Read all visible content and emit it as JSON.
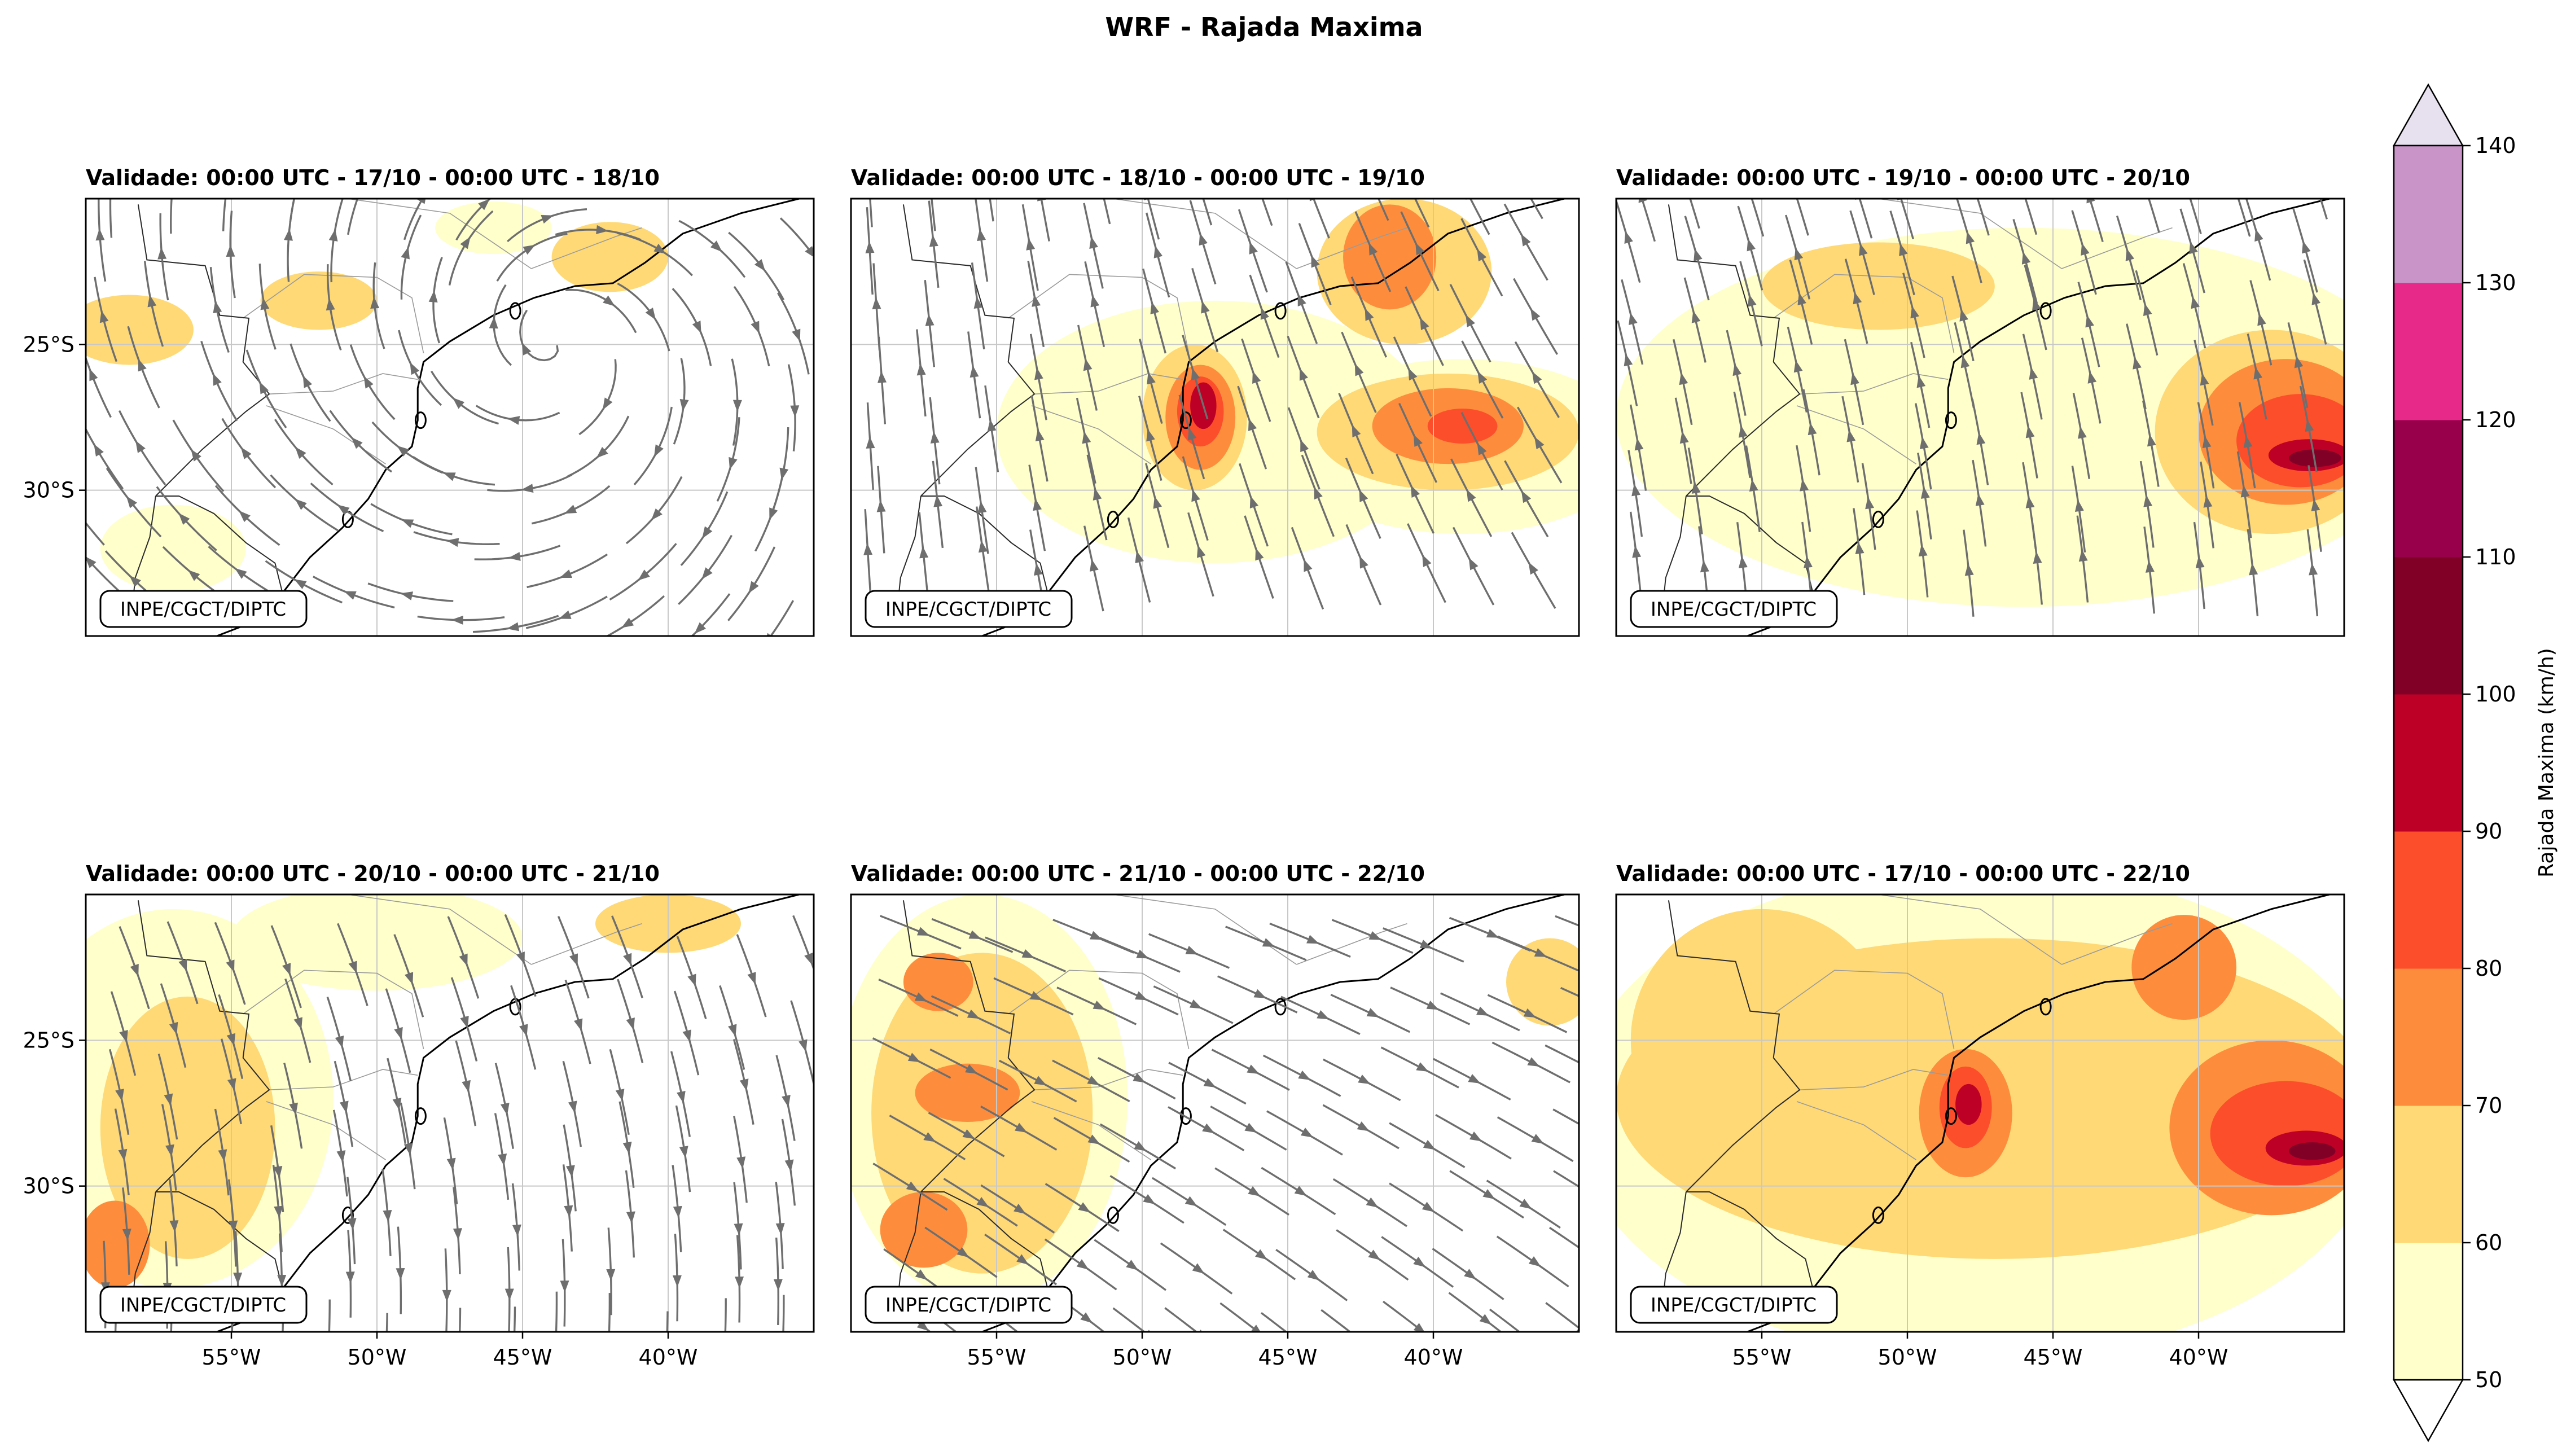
{
  "figure": {
    "title": "WRF - Rajada Maxima"
  },
  "chart_data": {
    "type": "heatmap",
    "title": "WRF - Rajada Maxima",
    "variable": "Rajada Maxima (km/h)",
    "overlay": "streamlines",
    "colorbar": {
      "label": "Rajada Maxima (km/h)",
      "levels": [
        50,
        60,
        70,
        80,
        90,
        100,
        110,
        120,
        130,
        140
      ],
      "colors": [
        "#ffffcc",
        "#fed976",
        "#fd8d3c",
        "#fc4e2a",
        "#bd0026",
        "#800026",
        "#99004c",
        "#e7298a",
        "#c994c7"
      ],
      "extend_under_color": "#ffffff",
      "extend_over_color": "#e7e1ef",
      "placement": "right"
    },
    "xlim": [
      -60,
      -35
    ],
    "ylim": [
      -35,
      -20
    ],
    "x_ticks": [
      "55°W",
      "50°W",
      "45°W",
      "40°W"
    ],
    "y_ticks": [
      "25°S",
      "30°S"
    ],
    "grid": true,
    "watermark": "INPE/CGCT/DIPTC",
    "panels": [
      {
        "title": "Validade: 00:00 UTC - 17/10 - 00:00 UTC - 18/10",
        "max_gust_region": [
          -58,
          -27
        ],
        "blobs": [
          {
            "lon": -58.5,
            "lat": -24.5,
            "rx": 2.2,
            "ry": 1.2,
            "level": 60
          },
          {
            "lon": -52.0,
            "lat": -23.5,
            "rx": 2.0,
            "ry": 1.0,
            "level": 60
          },
          {
            "lon": -42.0,
            "lat": -22.0,
            "rx": 2.0,
            "ry": 1.2,
            "level": 60
          },
          {
            "lon": -57.0,
            "lat": -32.0,
            "rx": 2.5,
            "ry": 1.5,
            "level": 50
          },
          {
            "lon": -46.0,
            "lat": -21.0,
            "rx": 2.0,
            "ry": 0.9,
            "level": 50
          }
        ]
      },
      {
        "title": "Validade: 00:00 UTC - 18/10 - 00:00 UTC - 19/10",
        "blobs": [
          {
            "lon": -47.5,
            "lat": -28.0,
            "rx": 7.5,
            "ry": 4.5,
            "level": 50
          },
          {
            "lon": -39.0,
            "lat": -28.5,
            "rx": 6.0,
            "ry": 3.0,
            "level": 50
          },
          {
            "lon": -41.0,
            "lat": -22.5,
            "rx": 3.0,
            "ry": 2.5,
            "level": 60
          },
          {
            "lon": -39.5,
            "lat": -28.0,
            "rx": 4.5,
            "ry": 2.0,
            "level": 60
          },
          {
            "lon": -41.5,
            "lat": -22.0,
            "rx": 1.6,
            "ry": 1.8,
            "level": 70
          },
          {
            "lon": -39.5,
            "lat": -27.8,
            "rx": 2.6,
            "ry": 1.3,
            "level": 70
          },
          {
            "lon": -39.0,
            "lat": -27.8,
            "rx": 1.2,
            "ry": 0.6,
            "level": 80
          },
          {
            "lon": -48.2,
            "lat": -27.5,
            "rx": 1.8,
            "ry": 2.5,
            "level": 60
          },
          {
            "lon": -48.0,
            "lat": -27.5,
            "rx": 1.2,
            "ry": 1.8,
            "level": 70
          },
          {
            "lon": -48.0,
            "lat": -27.3,
            "rx": 0.8,
            "ry": 1.2,
            "level": 80
          },
          {
            "lon": -47.9,
            "lat": -27.1,
            "rx": 0.45,
            "ry": 0.8,
            "level": 90
          }
        ]
      },
      {
        "title": "Validade: 00:00 UTC - 19/10 - 00:00 UTC - 20/10",
        "blobs": [
          {
            "lon": -46.0,
            "lat": -27.5,
            "rx": 14.0,
            "ry": 6.5,
            "level": 50
          },
          {
            "lon": -37.5,
            "lat": -28.0,
            "rx": 4.0,
            "ry": 3.5,
            "level": 60
          },
          {
            "lon": -51.0,
            "lat": -23.0,
            "rx": 4.0,
            "ry": 1.5,
            "level": 60
          },
          {
            "lon": -37.0,
            "lat": -28.0,
            "rx": 3.0,
            "ry": 2.5,
            "level": 70
          },
          {
            "lon": -36.5,
            "lat": -28.3,
            "rx": 2.2,
            "ry": 1.6,
            "level": 80
          },
          {
            "lon": -36.2,
            "lat": -28.8,
            "rx": 1.4,
            "ry": 0.55,
            "level": 90
          },
          {
            "lon": -36.0,
            "lat": -28.9,
            "rx": 0.9,
            "ry": 0.3,
            "level": 100
          }
        ]
      },
      {
        "title": "Validade: 00:00 UTC - 20/10 - 00:00 UTC - 21/10",
        "blobs": [
          {
            "lon": -57.0,
            "lat": -27.0,
            "rx": 5.5,
            "ry": 6.5,
            "level": 50
          },
          {
            "lon": -50.0,
            "lat": -21.5,
            "rx": 5.0,
            "ry": 1.8,
            "level": 50
          },
          {
            "lon": -56.5,
            "lat": -28.0,
            "rx": 3.0,
            "ry": 4.5,
            "level": 60
          },
          {
            "lon": -59.0,
            "lat": -32.0,
            "rx": 1.2,
            "ry": 1.5,
            "level": 70
          },
          {
            "lon": -40.0,
            "lat": -21.0,
            "rx": 2.5,
            "ry": 1.0,
            "level": 60
          }
        ]
      },
      {
        "title": "Validade: 00:00 UTC - 21/10 - 00:00 UTC - 22/10",
        "blobs": [
          {
            "lon": -55.5,
            "lat": -27.0,
            "rx": 5.0,
            "ry": 7.0,
            "level": 50
          },
          {
            "lon": -55.5,
            "lat": -27.5,
            "rx": 3.8,
            "ry": 5.5,
            "level": 60
          },
          {
            "lon": -56.0,
            "lat": -26.8,
            "rx": 1.8,
            "ry": 1.0,
            "level": 70
          },
          {
            "lon": -57.5,
            "lat": -31.5,
            "rx": 1.5,
            "ry": 1.3,
            "level": 70
          },
          {
            "lon": -57.0,
            "lat": -23.0,
            "rx": 1.2,
            "ry": 1.0,
            "level": 70
          },
          {
            "lon": -36.0,
            "lat": -23.0,
            "rx": 1.5,
            "ry": 1.5,
            "level": 60
          }
        ]
      },
      {
        "title": "Validade: 00:00 UTC - 17/10 - 00:00 UTC - 22/10",
        "blobs": [
          {
            "lon": -47.5,
            "lat": -27.5,
            "rx": 14.0,
            "ry": 8.5,
            "level": 50
          },
          {
            "lon": -47.0,
            "lat": -27.0,
            "rx": 13.0,
            "ry": 5.5,
            "level": 60
          },
          {
            "lon": -55.0,
            "lat": -25.0,
            "rx": 4.5,
            "ry": 4.5,
            "level": 60
          },
          {
            "lon": -37.5,
            "lat": -28.0,
            "rx": 3.5,
            "ry": 3.0,
            "level": 70
          },
          {
            "lon": -40.5,
            "lat": -22.5,
            "rx": 1.8,
            "ry": 1.8,
            "level": 70
          },
          {
            "lon": -48.0,
            "lat": -27.5,
            "rx": 1.6,
            "ry": 2.2,
            "level": 70
          },
          {
            "lon": -37.0,
            "lat": -28.2,
            "rx": 2.6,
            "ry": 1.8,
            "level": 80
          },
          {
            "lon": -48.0,
            "lat": -27.3,
            "rx": 0.9,
            "ry": 1.4,
            "level": 80
          },
          {
            "lon": -36.3,
            "lat": -28.7,
            "rx": 1.4,
            "ry": 0.6,
            "level": 90
          },
          {
            "lon": -47.9,
            "lat": -27.2,
            "rx": 0.45,
            "ry": 0.7,
            "level": 90
          },
          {
            "lon": -36.1,
            "lat": -28.8,
            "rx": 0.8,
            "ry": 0.3,
            "level": 100
          }
        ]
      }
    ],
    "coastline": [
      [
        -35.5,
        -20.0
      ],
      [
        -37.5,
        -20.5
      ],
      [
        -39.5,
        -21.2
      ],
      [
        -40.8,
        -22.2
      ],
      [
        -41.9,
        -22.9
      ],
      [
        -43.2,
        -23.0
      ],
      [
        -44.6,
        -23.4
      ],
      [
        -46.0,
        -24.0
      ],
      [
        -47.5,
        -24.9
      ],
      [
        -48.4,
        -25.6
      ],
      [
        -48.6,
        -26.5
      ],
      [
        -48.6,
        -27.6
      ],
      [
        -48.8,
        -28.5
      ],
      [
        -49.7,
        -29.3
      ],
      [
        -50.3,
        -30.3
      ],
      [
        -51.2,
        -31.3
      ],
      [
        -52.3,
        -32.3
      ],
      [
        -53.3,
        -33.6
      ],
      [
        -54.2,
        -34.5
      ],
      [
        -55.5,
        -35.0
      ]
    ],
    "borders": [
      [
        [
          -53.2,
          -33.7
        ],
        [
          -53.5,
          -32.5
        ],
        [
          -54.5,
          -31.8
        ],
        [
          -55.6,
          -30.8
        ],
        [
          -56.8,
          -30.2
        ],
        [
          -57.6,
          -30.2
        ]
      ],
      [
        [
          -57.6,
          -30.2
        ],
        [
          -56.0,
          -28.6
        ],
        [
          -54.5,
          -27.3
        ],
        [
          -53.7,
          -26.7
        ],
        [
          -54.6,
          -25.6
        ]
      ],
      [
        [
          -54.6,
          -25.6
        ],
        [
          -54.4,
          -24.1
        ],
        [
          -55.4,
          -24.0
        ],
        [
          -55.9,
          -22.3
        ],
        [
          -57.9,
          -22.1
        ],
        [
          -58.2,
          -20.2
        ]
      ],
      [
        [
          -57.6,
          -30.2
        ],
        [
          -57.8,
          -31.6
        ],
        [
          -58.3,
          -33.0
        ],
        [
          -58.4,
          -34.0
        ]
      ]
    ],
    "states": [
      [
        [
          -53.7,
          -26.7
        ],
        [
          -51.5,
          -26.6
        ],
        [
          -49.8,
          -26.0
        ],
        [
          -48.6,
          -26.2
        ]
      ],
      [
        [
          -53.8,
          -27.1
        ],
        [
          -51.5,
          -27.9
        ],
        [
          -49.7,
          -29.1
        ]
      ],
      [
        [
          -54.6,
          -24.1
        ],
        [
          -52.5,
          -22.6
        ],
        [
          -50.0,
          -22.7
        ],
        [
          -48.8,
          -23.4
        ],
        [
          -48.4,
          -25.3
        ]
      ],
      [
        [
          -51.0,
          -20.0
        ],
        [
          -47.5,
          -20.5
        ],
        [
          -44.7,
          -22.4
        ]
      ],
      [
        [
          -44.7,
          -22.4
        ],
        [
          -41.8,
          -21.3
        ],
        [
          -40.9,
          -21.0
        ]
      ]
    ],
    "islands": [
      [
        -45.25,
        -23.85
      ],
      [
        -48.5,
        -27.6
      ],
      [
        -51.0,
        -31.0
      ]
    ]
  }
}
